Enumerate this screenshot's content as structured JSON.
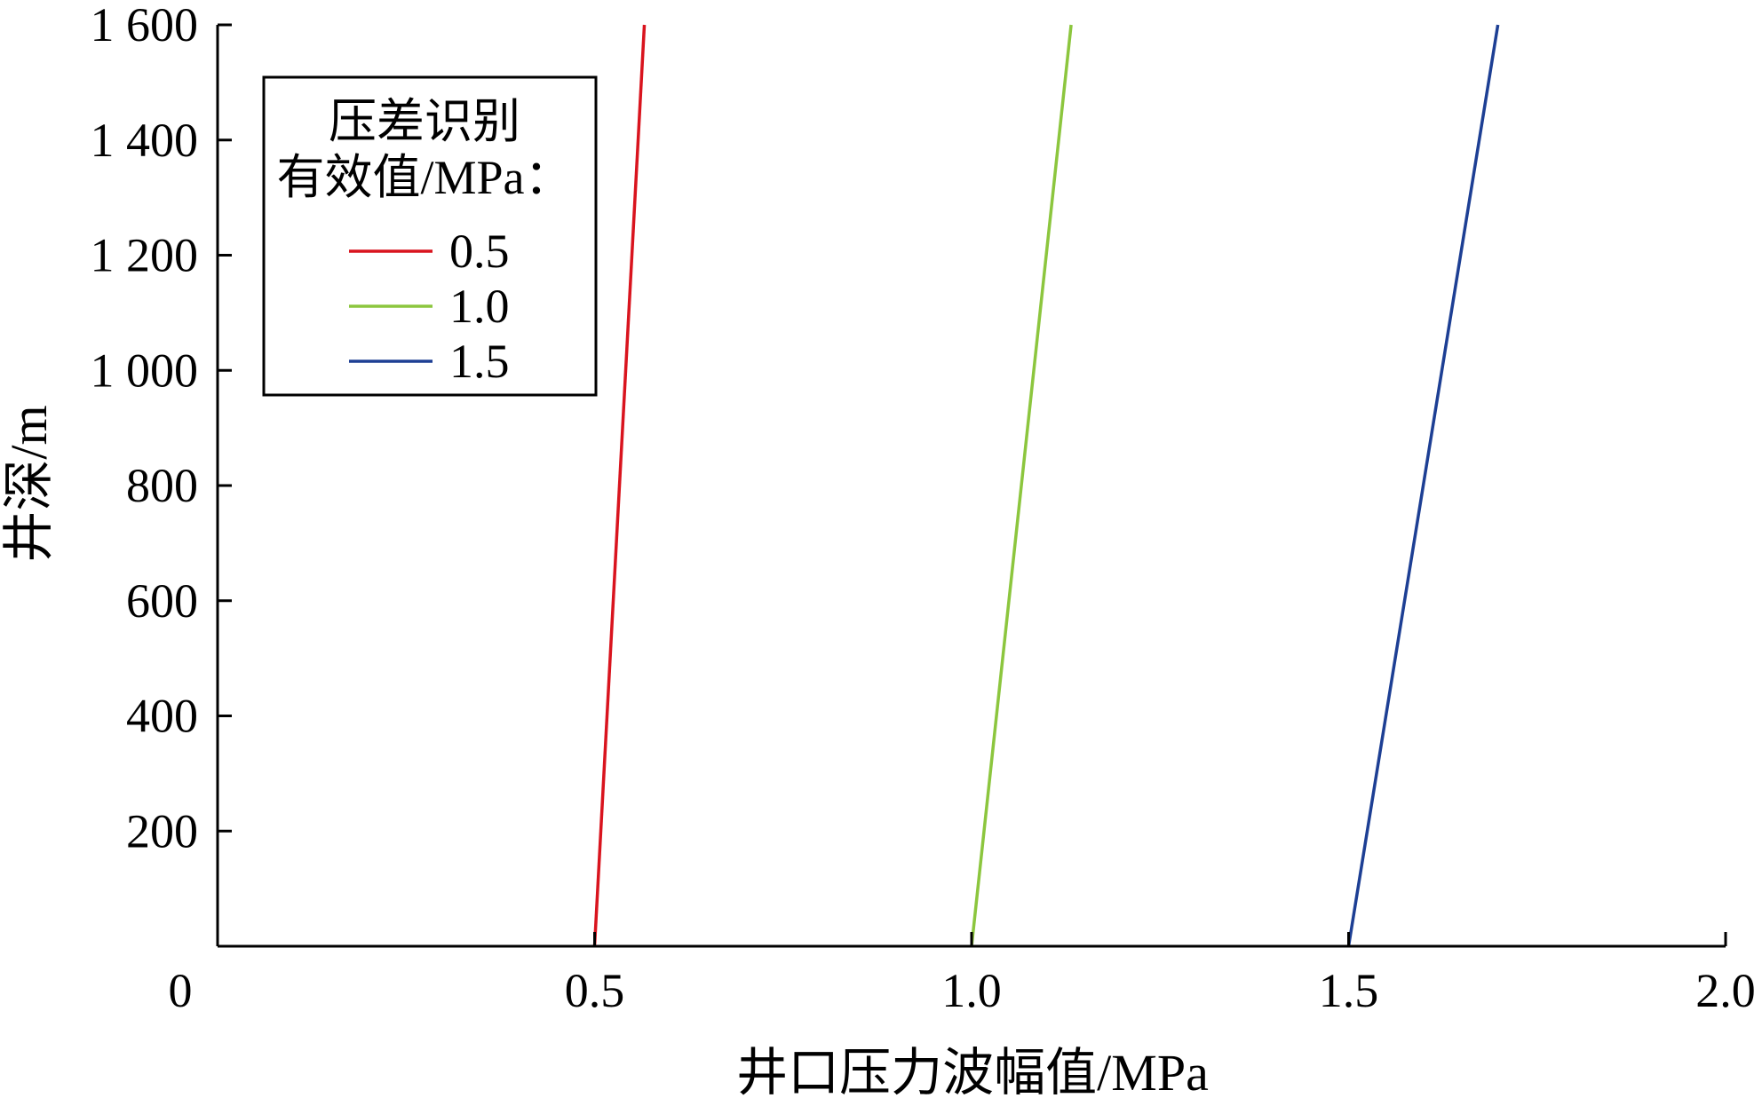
{
  "chart_data": {
    "type": "line",
    "xlabel": "井口压力波幅值/MPa",
    "ylabel": "井深/m",
    "xlim": [
      0,
      2.0
    ],
    "ylim": [
      0,
      1600
    ],
    "x_ticks": [
      "0",
      "0.5",
      "1.0",
      "1.5",
      "2.0"
    ],
    "y_ticks": [
      "200",
      "400",
      "600",
      "800",
      "1 000",
      "1 200",
      "1 400",
      "1 600"
    ],
    "legend": {
      "title_line1": "压差识别",
      "title_line2": "有效值/MPa：",
      "placement": "top-left"
    },
    "series": [
      {
        "name": "0.5",
        "color": "#d9141e",
        "x": [
          0.5,
          0.566
        ],
        "y": [
          0,
          1600
        ]
      },
      {
        "name": "1.0",
        "color": "#8cc63e",
        "x": [
          1.0,
          1.132
        ],
        "y": [
          0,
          1600
        ]
      },
      {
        "name": "1.5",
        "color": "#1d3f94",
        "x": [
          1.5,
          1.698
        ],
        "y": [
          0,
          1600
        ]
      }
    ]
  }
}
